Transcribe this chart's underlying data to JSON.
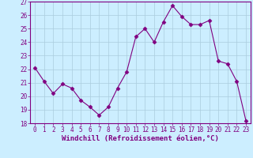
{
  "x": [
    0,
    1,
    2,
    3,
    4,
    5,
    6,
    7,
    8,
    9,
    10,
    11,
    12,
    13,
    14,
    15,
    16,
    17,
    18,
    19,
    20,
    21,
    22,
    23
  ],
  "y": [
    22.1,
    21.1,
    20.2,
    20.9,
    20.6,
    19.7,
    19.2,
    18.6,
    19.2,
    20.6,
    21.8,
    24.4,
    25.0,
    24.0,
    25.5,
    26.7,
    25.9,
    25.3,
    25.3,
    25.6,
    22.6,
    22.4,
    21.1,
    18.2
  ],
  "line_color": "#800080",
  "marker": "D",
  "marker_size": 2.5,
  "bg_color": "#cceeff",
  "grid_color": "#aaccdd",
  "xlabel": "Windchill (Refroidissement éolien,°C)",
  "ylim": [
    18,
    27
  ],
  "xlim": [
    -0.5,
    23.5
  ],
  "yticks": [
    18,
    19,
    20,
    21,
    22,
    23,
    24,
    25,
    26,
    27
  ],
  "xticks": [
    0,
    1,
    2,
    3,
    4,
    5,
    6,
    7,
    8,
    9,
    10,
    11,
    12,
    13,
    14,
    15,
    16,
    17,
    18,
    19,
    20,
    21,
    22,
    23
  ],
  "tick_label_size": 5.5,
  "xlabel_size": 6.5,
  "spine_color": "#800080",
  "axis_bg": "#cceeff"
}
